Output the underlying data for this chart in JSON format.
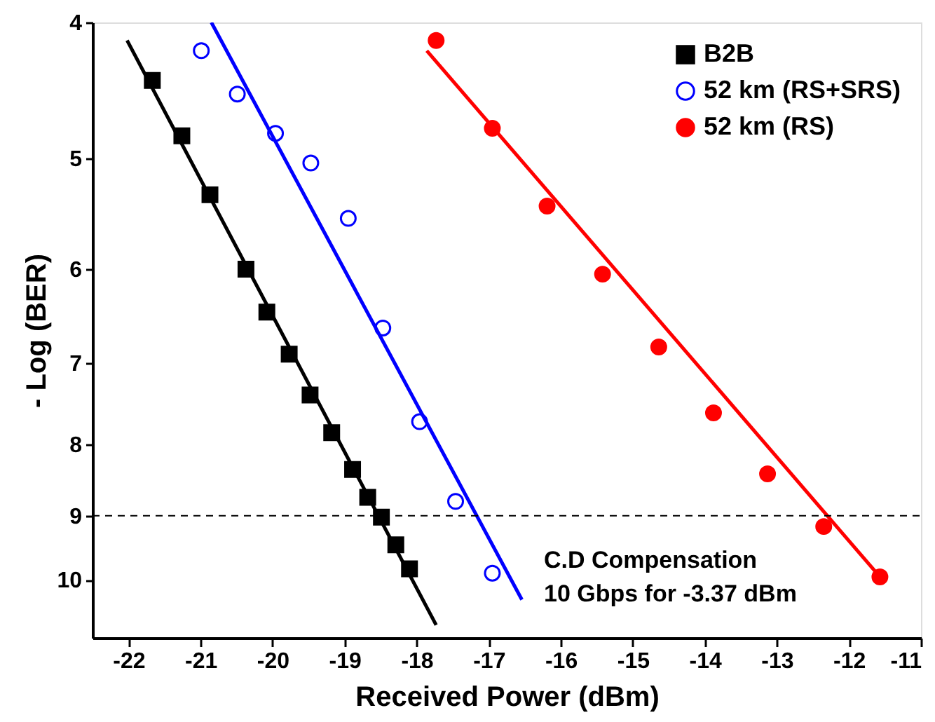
{
  "chart_data": {
    "type": "scatter",
    "xlabel": "Received Power (dBm)",
    "ylabel": "- Log (BER)",
    "xlim": [
      -22.5,
      -11
    ],
    "xticks": [
      -22,
      -21,
      -20,
      -19,
      -18,
      -17,
      -16,
      -15,
      -14,
      -13,
      -12,
      -11
    ],
    "ylim": [
      11,
      4
    ],
    "yticks": [
      4,
      5,
      6,
      7,
      8,
      9,
      10
    ],
    "log": "y",
    "grid": false,
    "legend": "top right",
    "series": [
      {
        "name": "B2B",
        "marker": "square",
        "color": "#000000",
        "x": [
          -21.67,
          -21.26,
          -20.87,
          -20.37,
          -20.08,
          -19.77,
          -19.48,
          -19.18,
          -18.89,
          -18.68,
          -18.49,
          -18.29,
          -18.1
        ],
        "values": [
          4.4,
          4.82,
          5.31,
          6.0,
          6.44,
          6.9,
          7.38,
          7.85,
          8.34,
          8.73,
          9.02,
          9.44,
          9.82
        ]
      },
      {
        "name": "52 km (RS+SRS)",
        "marker": "open circle",
        "color": "#0000ff",
        "x": [
          -20.99,
          -20.49,
          -19.96,
          -19.47,
          -18.95,
          -18.47,
          -17.96,
          -17.46,
          -16.95
        ],
        "values": [
          4.19,
          4.5,
          4.8,
          5.04,
          5.52,
          6.61,
          7.71,
          8.79,
          9.89
        ]
      },
      {
        "name": "52 km (RS)",
        "marker": "circle",
        "color": "#ff0000",
        "x": [
          -17.73,
          -16.95,
          -16.19,
          -15.42,
          -14.64,
          -13.88,
          -13.13,
          -12.35,
          -11.57
        ],
        "values": [
          4.12,
          4.76,
          5.41,
          6.05,
          6.82,
          7.6,
          8.4,
          9.16,
          9.95
        ]
      },
      {
        "type": "line",
        "line_style": "solid",
        "color": "#000000",
        "x": [
          -22.02,
          -17.73
        ],
        "values": [
          4.12,
          10.77
        ]
      },
      {
        "type": "line",
        "line_style": "solid",
        "color": "#0000ff",
        "x": [
          -20.85,
          -16.54
        ],
        "values": [
          4.0,
          10.33
        ]
      },
      {
        "type": "line",
        "line_style": "solid",
        "color": "#ff0000",
        "x": [
          -17.86,
          -11.57
        ],
        "values": [
          4.19,
          9.95
        ]
      }
    ],
    "ref_lines": [
      {
        "axis": "y",
        "value": 9,
        "color": "#000000",
        "line_style": "dashed"
      }
    ],
    "annotations": [
      "C.D Compensation",
      "10 Gbps for -3.37 dBm"
    ]
  }
}
